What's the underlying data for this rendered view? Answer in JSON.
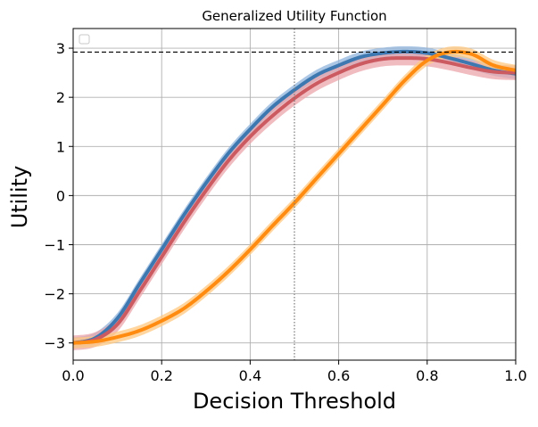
{
  "chart_data": {
    "type": "line",
    "title": "Generalized Utility Function",
    "xlabel": "Decision Threshold",
    "ylabel": "Utility",
    "xlim": [
      0.0,
      1.0
    ],
    "ylim": [
      -3.35,
      3.4
    ],
    "xticks": [
      "0.0",
      "0.2",
      "0.4",
      "0.6",
      "0.8",
      "1.0"
    ],
    "yticks": [
      "−3",
      "−2",
      "−1",
      "0",
      "1",
      "2",
      "3"
    ],
    "grid": true,
    "legend": "top-left (empty)",
    "reference_lines": {
      "horizontal_dashed_y": 2.92,
      "vertical_dotted_x": 0.5
    },
    "series": [
      {
        "color": "#3d78b1",
        "band_color": "#8fb4dc",
        "band_width": 0.11,
        "x": [
          0.0,
          0.05,
          0.1,
          0.15,
          0.2,
          0.25,
          0.3,
          0.35,
          0.4,
          0.45,
          0.5,
          0.55,
          0.6,
          0.65,
          0.7,
          0.75,
          0.8,
          0.85,
          0.9,
          0.95,
          1.0
        ],
        "y": [
          -3.0,
          -2.9,
          -2.5,
          -1.8,
          -1.1,
          -0.4,
          0.25,
          0.85,
          1.35,
          1.8,
          2.15,
          2.45,
          2.65,
          2.82,
          2.9,
          2.93,
          2.9,
          2.8,
          2.68,
          2.55,
          2.48
        ]
      },
      {
        "color": "#cc5a61",
        "band_color": "#eba5ab",
        "band_width": 0.15,
        "x": [
          0.0,
          0.05,
          0.1,
          0.15,
          0.2,
          0.25,
          0.3,
          0.35,
          0.4,
          0.45,
          0.5,
          0.55,
          0.6,
          0.65,
          0.7,
          0.75,
          0.8,
          0.85,
          0.9,
          0.95,
          1.0
        ],
        "y": [
          -3.0,
          -2.93,
          -2.62,
          -1.95,
          -1.25,
          -0.55,
          0.1,
          0.7,
          1.2,
          1.62,
          1.98,
          2.28,
          2.5,
          2.68,
          2.78,
          2.8,
          2.78,
          2.7,
          2.6,
          2.52,
          2.5
        ]
      },
      {
        "color": "#ff8c10",
        "band_color": "#ffc880",
        "band_width": 0.11,
        "x": [
          0.0,
          0.05,
          0.1,
          0.15,
          0.2,
          0.25,
          0.3,
          0.35,
          0.4,
          0.45,
          0.5,
          0.55,
          0.6,
          0.65,
          0.7,
          0.75,
          0.8,
          0.85,
          0.9,
          0.95,
          1.0
        ],
        "y": [
          -3.0,
          -2.97,
          -2.88,
          -2.75,
          -2.55,
          -2.3,
          -1.95,
          -1.55,
          -1.1,
          -0.62,
          -0.15,
          0.35,
          0.85,
          1.35,
          1.85,
          2.35,
          2.75,
          2.92,
          2.88,
          2.65,
          2.55
        ]
      }
    ]
  }
}
